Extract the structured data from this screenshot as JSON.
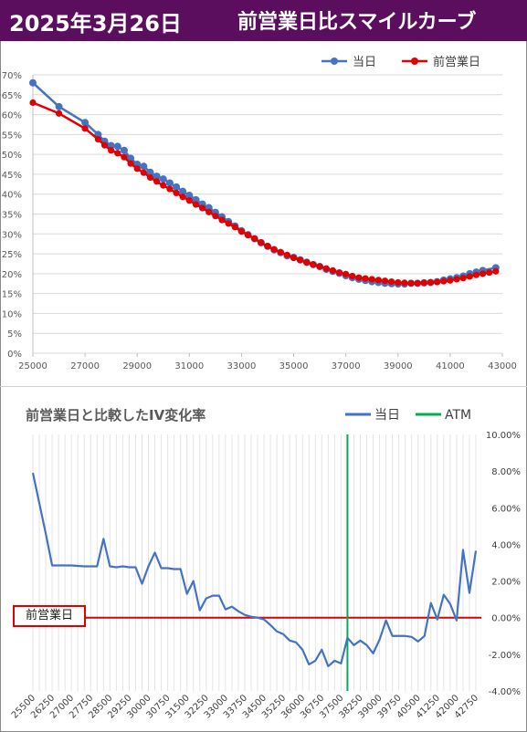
{
  "header": {
    "date": "2025年3月26日",
    "title": "前営業日比スマイルカーブ"
  },
  "colors": {
    "header_bg": "#5b0d5e",
    "today": "#4472c4",
    "prev": "#e00000",
    "atm": "#00b050"
  },
  "chart_data": [
    {
      "type": "line",
      "title": "",
      "legend_position": "top-right",
      "grid": true,
      "xlim": [
        25000,
        43000
      ],
      "ylim": [
        0,
        70
      ],
      "x_ticks": [
        "25000",
        "27000",
        "29000",
        "31000",
        "33000",
        "35000",
        "37000",
        "39000",
        "41000",
        "43000"
      ],
      "y_ticks": [
        "0%",
        "5%",
        "10%",
        "15%",
        "20%",
        "25%",
        "30%",
        "35%",
        "40%",
        "45%",
        "50%",
        "55%",
        "60%",
        "65%",
        "70%"
      ],
      "series": [
        {
          "name": "当日",
          "x": [
            25000,
            26000,
            27000,
            27500,
            27750,
            28000,
            28250,
            28500,
            28750,
            29000,
            29250,
            29500,
            29750,
            30000,
            30250,
            30500,
            30750,
            31000,
            31250,
            31500,
            31750,
            32000,
            32250,
            32500,
            32750,
            33000,
            33250,
            33500,
            33750,
            34000,
            34250,
            34500,
            34750,
            35000,
            35250,
            35500,
            35750,
            36000,
            36250,
            36500,
            36750,
            37000,
            37250,
            37500,
            37750,
            38000,
            38250,
            38500,
            38750,
            39000,
            39250,
            39500,
            39750,
            40000,
            40250,
            40500,
            40750,
            41000,
            41250,
            41500,
            41750,
            42000,
            42250,
            42750
          ],
          "values": [
            68,
            62,
            58,
            55,
            53.3,
            52.2,
            52,
            51,
            49,
            47.5,
            47,
            45.5,
            44.5,
            43.8,
            42.8,
            41.8,
            40.7,
            39.7,
            38.6,
            37.5,
            36.6,
            35.4,
            34.3,
            33.1,
            32,
            30.8,
            29.8,
            28.8,
            27.8,
            26.9,
            26,
            25.3,
            24.5,
            24.1,
            23.5,
            22.9,
            22.3,
            21.8,
            21.1,
            20.6,
            20.1,
            19.5,
            19,
            18.6,
            18.3,
            18,
            17.8,
            17.6,
            17.5,
            17.4,
            17.4,
            17.6,
            17.6,
            17.7,
            17.8,
            18,
            18.4,
            18.7,
            19,
            19.4,
            20,
            20.4,
            20.8,
            21.5
          ]
        },
        {
          "name": "前営業日",
          "x": [
            25000,
            26000,
            27000,
            27500,
            27750,
            28000,
            28250,
            28500,
            28750,
            29000,
            29250,
            29500,
            29750,
            30000,
            30250,
            30500,
            30750,
            31000,
            31250,
            31500,
            31750,
            32000,
            32250,
            32500,
            32750,
            33000,
            33250,
            33500,
            33750,
            34000,
            34250,
            34500,
            34750,
            35000,
            35250,
            35500,
            35750,
            36000,
            36250,
            36500,
            36750,
            37000,
            37250,
            37500,
            37750,
            38000,
            38250,
            38500,
            38750,
            39000,
            39250,
            39500,
            39750,
            40000,
            40250,
            40500,
            40750,
            41000,
            41250,
            41500,
            41750,
            42000,
            42250,
            42500,
            42750
          ],
          "values": [
            63,
            60.3,
            56.5,
            53.8,
            52.3,
            51,
            50.3,
            49.3,
            47.7,
            46.4,
            45.4,
            44.2,
            43.2,
            42.2,
            41.3,
            40.3,
            39.3,
            38.4,
            37.4,
            36.5,
            35.5,
            34.5,
            33.5,
            32.6,
            31.7,
            30.6,
            29.7,
            28.8,
            27.8,
            26.9,
            26.1,
            25.4,
            24.7,
            24,
            23.4,
            22.8,
            22.3,
            21.8,
            21.3,
            20.8,
            20.3,
            19.9,
            19.4,
            19,
            18.8,
            18.6,
            18.4,
            18.2,
            18,
            17.8,
            17.7,
            17.6,
            17.6,
            17.7,
            17.8,
            17.9,
            18.1,
            18.3,
            18.6,
            18.9,
            19.3,
            19.7,
            20,
            20.3,
            20.6
          ]
        }
      ]
    },
    {
      "type": "line",
      "title": "前営業日と比較したIV変化率",
      "legend_position": "top-right",
      "grid": true,
      "xlim": [
        25500,
        42750
      ],
      "ylim": [
        -4,
        10
      ],
      "y_ticks": [
        "-4.00%",
        "-2.00%",
        "0.00%",
        "2.00%",
        "4.00%",
        "6.00%",
        "8.00%",
        "10.00%"
      ],
      "x_ticks": [
        "25500",
        "26250",
        "27000",
        "27750",
        "28500",
        "29250",
        "30000",
        "30750",
        "31500",
        "32250",
        "33000",
        "33750",
        "34500",
        "35250",
        "36000",
        "36750",
        "37500",
        "38250",
        "39000",
        "39750",
        "40500",
        "41250",
        "42000",
        "42750"
      ],
      "atm_x": 37750,
      "zero_label": "前営業日",
      "series": [
        {
          "name": "当日",
          "x": [
            25500,
            26000,
            26250,
            27000,
            27500,
            27750,
            28000,
            28250,
            28500,
            28750,
            29000,
            29250,
            29500,
            29750,
            30000,
            30250,
            30500,
            30750,
            31000,
            31250,
            31500,
            31750,
            32000,
            32250,
            32500,
            32750,
            33000,
            33250,
            33500,
            33750,
            34000,
            34250,
            34500,
            34750,
            35000,
            35250,
            35500,
            35750,
            36000,
            36250,
            36500,
            36750,
            37000,
            37250,
            37500,
            37750,
            38000,
            38250,
            38500,
            38750,
            39000,
            39250,
            39500,
            39750,
            40000,
            40250,
            40500,
            40750,
            41000,
            41250,
            41500,
            41750,
            42000,
            42250,
            42500,
            42750
          ],
          "values": [
            7.9,
            4.6,
            2.85,
            2.85,
            2.8,
            2.8,
            2.8,
            4.3,
            2.8,
            2.75,
            2.8,
            2.75,
            2.75,
            1.85,
            2.8,
            3.55,
            2.7,
            2.7,
            2.65,
            2.65,
            1.3,
            2.0,
            0.4,
            1.05,
            1.2,
            1.2,
            0.45,
            0.6,
            0.35,
            0.15,
            0.05,
            0.0,
            -0.1,
            -0.4,
            -0.75,
            -0.9,
            -1.25,
            -1.35,
            -1.75,
            -2.55,
            -2.35,
            -1.75,
            -2.65,
            -2.35,
            -2.5,
            -1.1,
            -1.5,
            -1.25,
            -1.5,
            -1.95,
            -1.2,
            -0.15,
            -1.0,
            -1.0,
            -1.0,
            -1.05,
            -1.3,
            -1.0,
            0.8,
            -0.1,
            1.25,
            0.75,
            -0.15,
            3.7,
            1.35,
            3.65
          ]
        }
      ]
    }
  ]
}
